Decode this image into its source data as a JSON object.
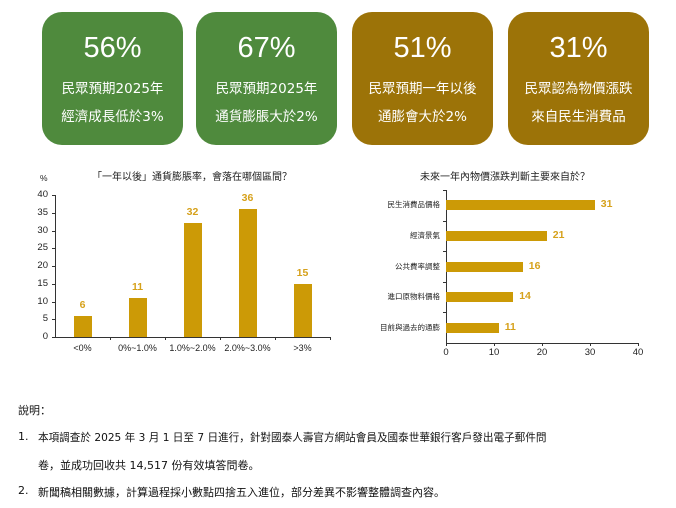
{
  "cards": [
    {
      "value": "56%",
      "line1": "民眾預期2025年",
      "line2": "經濟成長低於3%",
      "color": "#4f8a3d"
    },
    {
      "value": "67%",
      "line1": "民眾預期2025年",
      "line2": "通貨膨脹大於2%",
      "color": "#4f8a3d"
    },
    {
      "value": "51%",
      "line1": "民眾預期一年以後",
      "line2": "通膨會大於2%",
      "color": "#9c7308"
    },
    {
      "value": "31%",
      "line1": "民眾認為物價漲跌",
      "line2": "來自民生消費品",
      "color": "#9c7308"
    }
  ],
  "chart_data": [
    {
      "type": "bar",
      "title": "「一年以後」通貨膨脹率，會落在哪個區間？",
      "ylabel": "%",
      "xlabel": "",
      "categories": [
        "<0%",
        "0%~1.0%",
        "1.0%~2.0%",
        "2.0%~3.0%",
        ">3%"
      ],
      "values": [
        6,
        11,
        32,
        36,
        15
      ],
      "ylim": [
        0,
        40
      ],
      "yticks": [
        "0",
        "5",
        "10",
        "15",
        "20",
        "25",
        "30",
        "35",
        "40"
      ],
      "grid": false,
      "bar_color": "#cc9a06",
      "label_color": "#d6a11b"
    },
    {
      "type": "bar",
      "orientation": "horizontal",
      "title": "未來一年內物價漲跌判斷主要來自於？",
      "xlabel": "",
      "ylabel": "",
      "categories": [
        "民生消費品價格",
        "經濟景氣",
        "公共費率調整",
        "進口原物料價格",
        "目前與過去的通膨"
      ],
      "values": [
        31,
        21,
        16,
        14,
        11
      ],
      "xlim": [
        0,
        40
      ],
      "xticks": [
        "0",
        "10",
        "20",
        "30",
        "40"
      ],
      "grid": false,
      "bar_color": "#cc9a06",
      "label_color": "#d6a11b"
    }
  ],
  "notes": {
    "heading": "說明：",
    "items": [
      {
        "num": "1.",
        "line1": "本項調查於 2025 年 3 月 1 日至 7 日進行，針對國泰人壽官方網站會員及國泰世華銀行客戶發出電子郵件問",
        "line2": "卷，並成功回收共 14,517 份有效填答問卷。"
      },
      {
        "num": "2.",
        "line1": "新聞稿相關數據，計算過程採小數點四捨五入進位，部分差異不影響整體調查內容。"
      }
    ]
  }
}
